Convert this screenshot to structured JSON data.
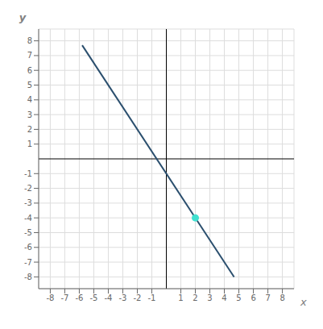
{
  "chart_data": {
    "type": "line",
    "xlabel": "x",
    "ylabel": "y",
    "xlim": [
      -8.8,
      8.8
    ],
    "ylim": [
      -8.8,
      8.8
    ],
    "xticks": [
      -8,
      -7,
      -6,
      -5,
      -4,
      -3,
      -2,
      -1,
      1,
      2,
      3,
      4,
      5,
      6,
      7,
      8
    ],
    "yticks": [
      -8,
      -7,
      -6,
      -5,
      -4,
      -3,
      -2,
      -1,
      1,
      2,
      3,
      4,
      5,
      6,
      7,
      8
    ],
    "grid": true,
    "series": [
      {
        "type": "line",
        "color": "#2b4f6e",
        "x": [
          -5.8,
          4.67
        ],
        "values": [
          7.7,
          -8.005
        ]
      },
      {
        "type": "scatter",
        "color": "#40e0d0",
        "x": [
          2
        ],
        "values": [
          -4
        ]
      }
    ]
  }
}
